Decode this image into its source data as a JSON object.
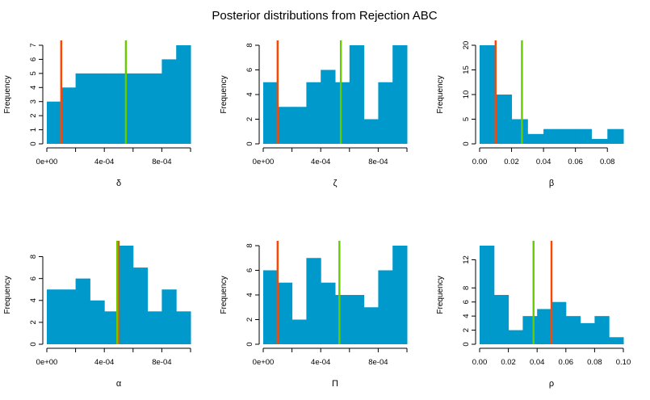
{
  "title": "Posterior distributions from Rejection ABC",
  "colors": {
    "bar": "#0099cc",
    "orange_line": "#ff4500",
    "green_line": "#66cc00",
    "axis": "#000000"
  },
  "chart_data": [
    {
      "type": "bar",
      "xlabel": "δ",
      "ylabel": "Frequency",
      "bin_edges": [
        0,
        0.0001,
        0.0002,
        0.0003,
        0.0004,
        0.0005,
        0.0006,
        0.0007,
        0.0008,
        0.0009,
        0.001
      ],
      "values": [
        3,
        4,
        5,
        5,
        5,
        5,
        5,
        5,
        6,
        7
      ],
      "xlim": [
        0,
        0.001
      ],
      "ylim": [
        0,
        7
      ],
      "xticks": [
        0,
        0.0002,
        0.0004,
        0.0006,
        0.0008,
        0.001
      ],
      "xtick_labels": [
        "0e+00",
        "",
        "4e-04",
        "",
        "8e-04",
        ""
      ],
      "yticks": [
        0,
        1,
        2,
        3,
        4,
        5,
        6,
        7
      ],
      "ytick_labels": [
        "0",
        "1",
        "2",
        "3",
        "4",
        "5",
        "6",
        "7"
      ],
      "vlines": [
        {
          "x": 0.0001,
          "color": "orange"
        },
        {
          "x": 0.00055,
          "color": "green"
        }
      ]
    },
    {
      "type": "bar",
      "xlabel": "ζ",
      "ylabel": "Frequency",
      "bin_edges": [
        0,
        0.0001,
        0.0002,
        0.0003,
        0.0004,
        0.0005,
        0.0006,
        0.0007,
        0.0008,
        0.0009,
        0.001
      ],
      "values": [
        5,
        3,
        3,
        5,
        6,
        5,
        8,
        2,
        5,
        8
      ],
      "xlim": [
        0,
        0.001
      ],
      "ylim": [
        0,
        8
      ],
      "xticks": [
        0,
        0.0002,
        0.0004,
        0.0006,
        0.0008,
        0.001
      ],
      "xtick_labels": [
        "0e+00",
        "",
        "4e-04",
        "",
        "8e-04",
        ""
      ],
      "yticks": [
        0,
        2,
        4,
        6,
        8
      ],
      "ytick_labels": [
        "0",
        "2",
        "4",
        "6",
        "8"
      ],
      "vlines": [
        {
          "x": 0.0001,
          "color": "orange"
        },
        {
          "x": 0.00054,
          "color": "green"
        }
      ]
    },
    {
      "type": "bar",
      "xlabel": "β",
      "ylabel": "Frequency",
      "bin_edges": [
        0,
        0.01,
        0.02,
        0.03,
        0.04,
        0.05,
        0.06,
        0.07,
        0.08,
        0.09
      ],
      "values": [
        20,
        10,
        5,
        2,
        3,
        3,
        3,
        1,
        3
      ],
      "xlim": [
        0,
        0.09
      ],
      "ylim": [
        0,
        20
      ],
      "xticks": [
        0,
        0.02,
        0.04,
        0.06,
        0.08
      ],
      "xtick_labels": [
        "0.00",
        "0.02",
        "0.04",
        "0.06",
        "0.08"
      ],
      "yticks": [
        0,
        5,
        10,
        15,
        20
      ],
      "ytick_labels": [
        "0",
        "5",
        "10",
        "15",
        "20"
      ],
      "vlines": [
        {
          "x": 0.01,
          "color": "orange"
        },
        {
          "x": 0.0265,
          "color": "green"
        }
      ]
    },
    {
      "type": "bar",
      "xlabel": "α",
      "ylabel": "Frequency",
      "bin_edges": [
        0,
        0.0001,
        0.0002,
        0.0003,
        0.0004,
        0.0005,
        0.0006,
        0.0007,
        0.0008,
        0.0009,
        0.001
      ],
      "values": [
        5,
        5,
        6,
        4,
        3,
        9,
        7,
        3,
        5,
        3
      ],
      "xlim": [
        0,
        0.001
      ],
      "ylim": [
        0,
        9
      ],
      "xticks": [
        0,
        0.0002,
        0.0004,
        0.0006,
        0.0008,
        0.001
      ],
      "xtick_labels": [
        "0e+00",
        "",
        "4e-04",
        "",
        "8e-04",
        ""
      ],
      "yticks": [
        0,
        2,
        4,
        6,
        8
      ],
      "ytick_labels": [
        "0",
        "2",
        "4",
        "6",
        "8"
      ],
      "vlines": [
        {
          "x": 0.0005,
          "color": "orange"
        },
        {
          "x": 0.00049,
          "color": "green"
        }
      ]
    },
    {
      "type": "bar",
      "xlabel": "Π",
      "ylabel": "Frequency",
      "bin_edges": [
        0,
        0.0001,
        0.0002,
        0.0003,
        0.0004,
        0.0005,
        0.0006,
        0.0007,
        0.0008,
        0.0009,
        0.001
      ],
      "values": [
        6,
        5,
        2,
        7,
        5,
        4,
        4,
        3,
        6,
        8
      ],
      "xlim": [
        0,
        0.001
      ],
      "ylim": [
        0,
        8
      ],
      "xticks": [
        0,
        0.0002,
        0.0004,
        0.0006,
        0.0008,
        0.001
      ],
      "xtick_labels": [
        "0e+00",
        "",
        "4e-04",
        "",
        "8e-04",
        ""
      ],
      "yticks": [
        0,
        2,
        4,
        6,
        8
      ],
      "ytick_labels": [
        "0",
        "2",
        "4",
        "6",
        "8"
      ],
      "vlines": [
        {
          "x": 0.0001,
          "color": "orange"
        },
        {
          "x": 0.00053,
          "color": "green"
        }
      ]
    },
    {
      "type": "bar",
      "xlabel": "ρ",
      "ylabel": "Frequency",
      "bin_edges": [
        0,
        0.01,
        0.02,
        0.03,
        0.04,
        0.05,
        0.06,
        0.07,
        0.08,
        0.09,
        0.1
      ],
      "values": [
        14,
        7,
        2,
        4,
        5,
        6,
        4,
        3,
        4,
        1
      ],
      "xlim": [
        0,
        0.1
      ],
      "ylim": [
        0,
        14
      ],
      "xticks": [
        0,
        0.02,
        0.04,
        0.06,
        0.08,
        0.1
      ],
      "xtick_labels": [
        "0.00",
        "0.02",
        "0.04",
        "0.06",
        "0.08",
        "0.10"
      ],
      "yticks": [
        0,
        2,
        4,
        6,
        8,
        12
      ],
      "ytick_labels": [
        "0",
        "2",
        "4",
        "6",
        "8",
        "12"
      ],
      "vlines": [
        {
          "x": 0.05,
          "color": "orange"
        },
        {
          "x": 0.0375,
          "color": "green"
        }
      ]
    }
  ]
}
